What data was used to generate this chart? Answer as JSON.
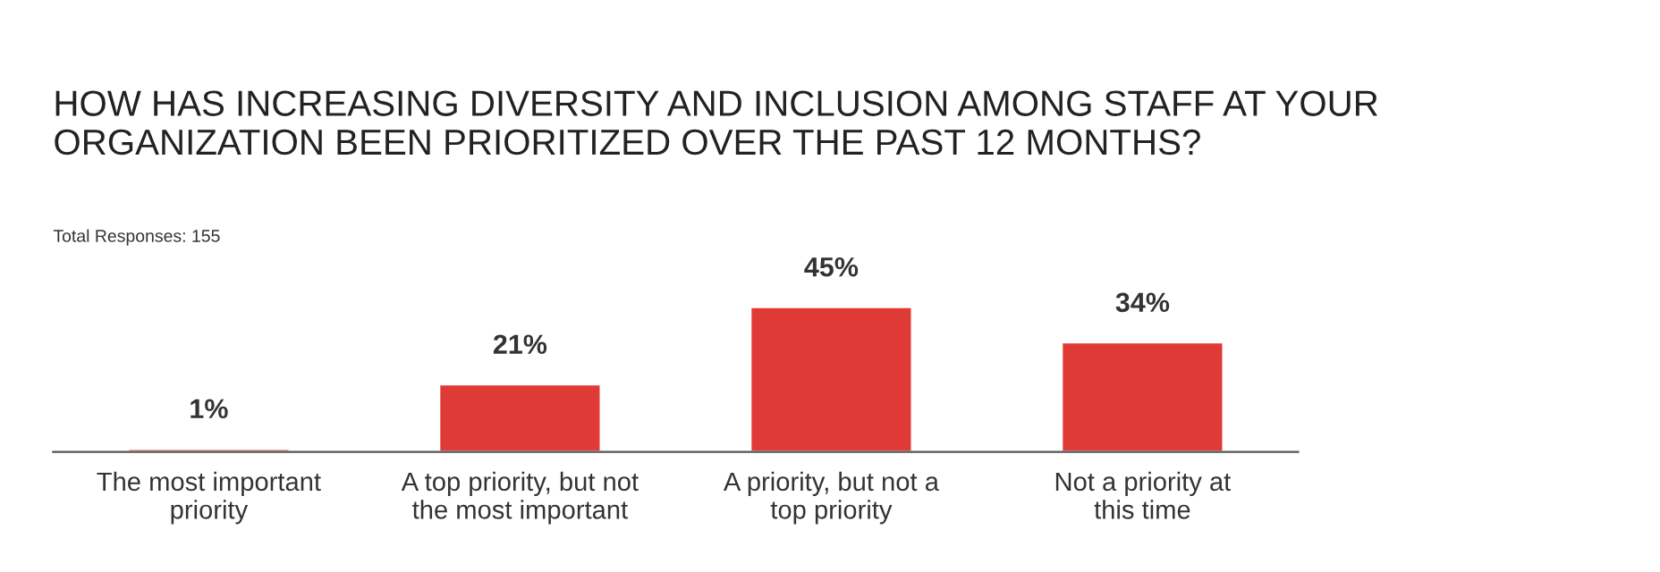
{
  "chart_data": {
    "type": "bar",
    "title": "HOW HAS INCREASING DIVERSITY AND INCLUSION AMONG STAFF AT YOUR\nORGANIZATION BEEN PRIORITIZED OVER THE PAST 12 MONTHS?",
    "subtitle": "Total Responses: 155",
    "categories": [
      "The most important\npriority",
      "A top priority, but not\nthe most important",
      "A priority, but not a\ntop priority",
      "Not a priority at\nthis time"
    ],
    "values": [
      1,
      21,
      45,
      34
    ],
    "value_labels": [
      "1%",
      "21%",
      "45%",
      "34%"
    ],
    "color": "#e03a37",
    "grid": false,
    "legend": false
  }
}
